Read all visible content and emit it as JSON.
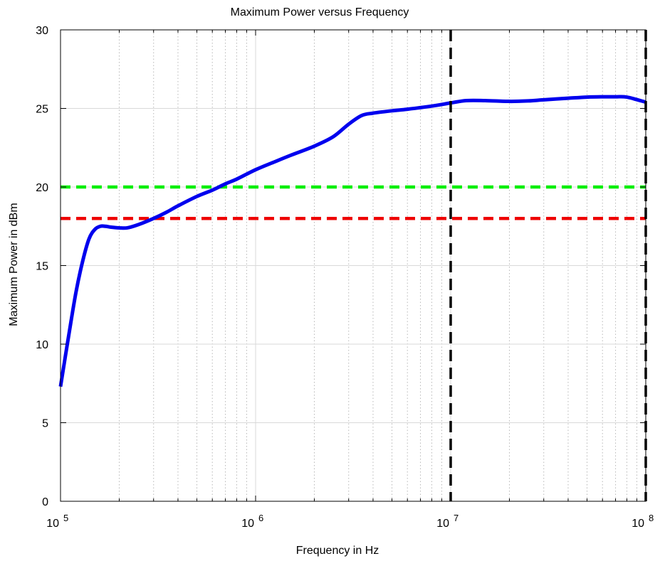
{
  "chart_data": {
    "type": "line",
    "title": "Maximum Power versus Frequency",
    "xlabel": "Frequency in Hz",
    "ylabel": "Maximum Power in dBm",
    "xscale": "log",
    "xlim": [
      100000,
      100000000
    ],
    "ylim": [
      0,
      30
    ],
    "xticks": [
      {
        "base": "10",
        "exp": "5",
        "value": 100000
      },
      {
        "base": "10",
        "exp": "6",
        "value": 1000000
      },
      {
        "base": "10",
        "exp": "7",
        "value": 10000000
      },
      {
        "base": "10",
        "exp": "8",
        "value": 100000000
      }
    ],
    "yticks": [
      {
        "label": "0",
        "value": 0
      },
      {
        "label": "5",
        "value": 5
      },
      {
        "label": "10",
        "value": 10
      },
      {
        "label": "15",
        "value": 15
      },
      {
        "label": "20",
        "value": 20
      },
      {
        "label": "25",
        "value": 25
      },
      {
        "label": "30",
        "value": 30
      }
    ],
    "grid": true,
    "series": [
      {
        "color": "#0000ee",
        "style": "solid",
        "x": [
          100000,
          110000,
          120000,
          130000,
          140000,
          150000,
          160000,
          170000,
          180000,
          200000,
          220000,
          250000,
          300000,
          350000,
          400000,
          500000,
          600000,
          700000,
          800000,
          1000000,
          1250000,
          1500000,
          2000000,
          2500000,
          3000000,
          3500000,
          4000000,
          5000000,
          6000000,
          8000000,
          10000000,
          12000000,
          15000000,
          20000000,
          25000000,
          30000000,
          40000000,
          50000000,
          60000000,
          70000000,
          80000000,
          100000000
        ],
        "y": [
          7.3,
          10.5,
          13.3,
          15.3,
          16.7,
          17.3,
          17.5,
          17.5,
          17.45,
          17.4,
          17.4,
          17.6,
          18.0,
          18.4,
          18.8,
          19.4,
          19.8,
          20.2,
          20.5,
          21.1,
          21.6,
          22.0,
          22.6,
          23.2,
          24.0,
          24.55,
          24.7,
          24.85,
          24.95,
          25.15,
          25.35,
          25.5,
          25.5,
          25.45,
          25.48,
          25.55,
          25.65,
          25.72,
          25.74,
          25.74,
          25.72,
          25.4
        ]
      },
      {
        "color": "#00ee00",
        "style": "dashed",
        "x": [
          100000,
          100000000
        ],
        "y": [
          20,
          20
        ]
      },
      {
        "color": "#ee0000",
        "style": "dashed",
        "x": [
          100000,
          100000000
        ],
        "y": [
          18,
          18
        ]
      }
    ],
    "vlines": [
      {
        "x": 10000000,
        "color": "#000000",
        "style": "dashed"
      },
      {
        "x": 100000000,
        "color": "#000000",
        "style": "dashed"
      }
    ]
  }
}
